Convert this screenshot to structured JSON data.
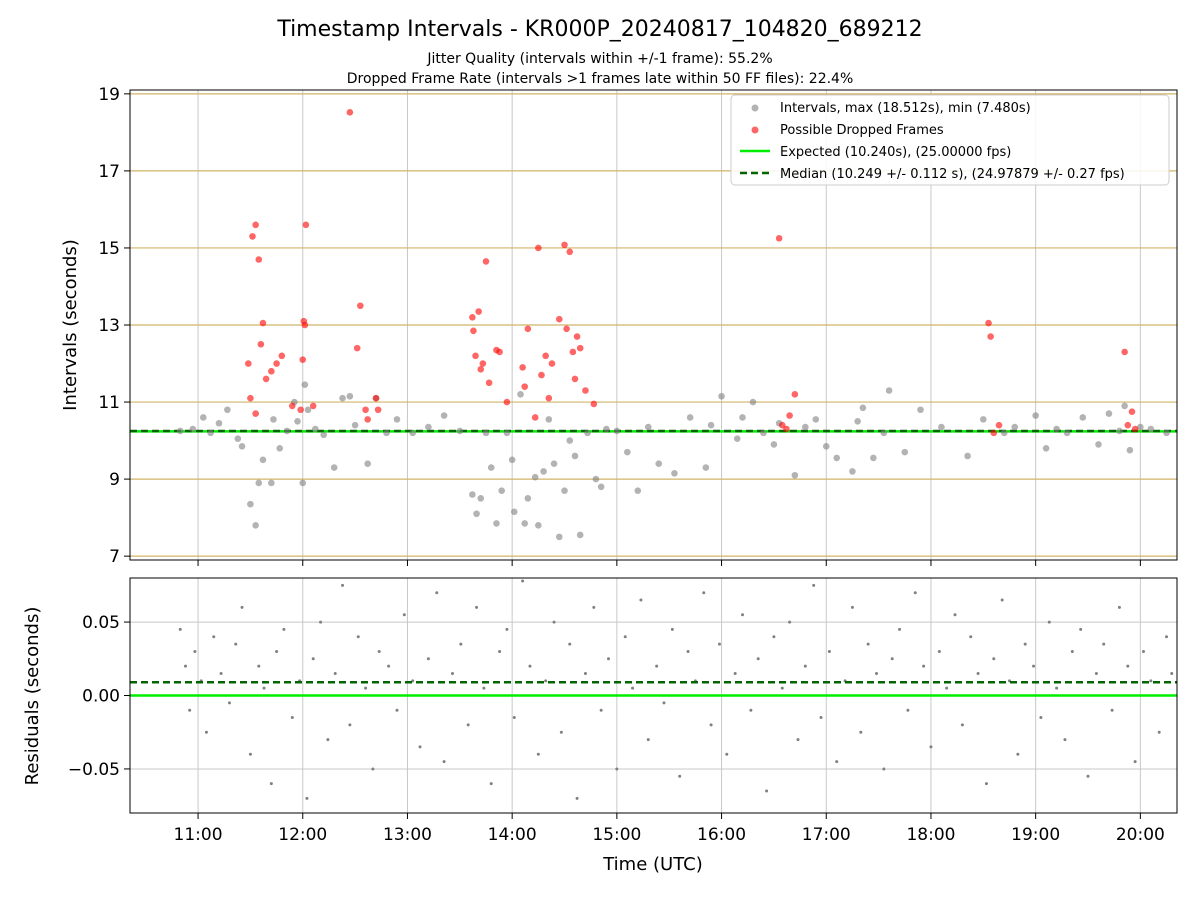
{
  "chart_data": {
    "title": "Timestamp Intervals - KR000P_20240817_104820_689212",
    "subtitle_lines": [
      "Jitter Quality (intervals within +/-1 frame): 55.2%",
      "Dropped Frame Rate (intervals >1 frames late within 50 FF files): 22.4%"
    ],
    "xlabel": "Time (UTC)",
    "x_ticks": [
      "11:00",
      "12:00",
      "13:00",
      "14:00",
      "15:00",
      "16:00",
      "17:00",
      "18:00",
      "19:00",
      "20:00"
    ],
    "x_range_hours": [
      10.35,
      20.35
    ],
    "colors": {
      "intervals": "#808080",
      "dropped": "#ff0000",
      "expected": "#00ee00",
      "median": "#006400",
      "hgrid_top": "#d2b467",
      "grid": "#c8c8c8"
    },
    "panels": [
      {
        "type": "scatter",
        "ylabel": "Intervals (seconds)",
        "ylim": [
          6.9,
          19.1
        ],
        "y_ticks": [
          "7",
          "9",
          "11",
          "13",
          "15",
          "17",
          "19"
        ],
        "legend": {
          "placement": "top-right",
          "entries": [
            "Intervals, max (18.512s), min (7.480s)",
            "Possible Dropped Frames",
            "Expected (10.240s), (25.00000 fps)",
            "Median (10.249 +/- 0.112 s), (24.97879 +/- 0.27 fps)"
          ]
        },
        "expected": 10.24,
        "median": 10.249,
        "series": [
          {
            "name": "Intervals, max (18.512s), min (7.480s)",
            "x": [
              10.83,
              10.95,
              11.05,
              11.12,
              11.2,
              11.28,
              11.38,
              11.42,
              11.5,
              11.55,
              11.58,
              11.62,
              11.7,
              11.72,
              11.78,
              11.85,
              11.92,
              11.95,
              12.0,
              12.02,
              12.05,
              12.12,
              12.2,
              12.3,
              12.38,
              12.45,
              12.5,
              12.62,
              12.7,
              12.8,
              12.9,
              13.05,
              13.2,
              13.35,
              13.5,
              13.62,
              13.66,
              13.7,
              13.75,
              13.8,
              13.85,
              13.9,
              13.95,
              14.0,
              14.02,
              14.08,
              14.12,
              14.15,
              14.22,
              14.25,
              14.3,
              14.35,
              14.4,
              14.45,
              14.5,
              14.55,
              14.6,
              14.65,
              14.72,
              14.8,
              14.85,
              14.9,
              15.0,
              15.1,
              15.2,
              15.3,
              15.4,
              15.55,
              15.7,
              15.85,
              15.9,
              16.0,
              16.15,
              16.2,
              16.3,
              16.4,
              16.5,
              16.55,
              16.7,
              16.8,
              16.9,
              17.0,
              17.1,
              17.25,
              17.3,
              17.35,
              17.45,
              17.55,
              17.6,
              17.75,
              17.9,
              18.1,
              18.35,
              18.5,
              18.7,
              18.8,
              19.0,
              19.1,
              19.2,
              19.3,
              19.45,
              19.6,
              19.7,
              19.8,
              19.85,
              19.9,
              20.0,
              20.1,
              20.25
            ],
            "y": [
              10.25,
              10.3,
              10.6,
              10.2,
              10.45,
              10.8,
              10.05,
              9.85,
              8.35,
              7.8,
              8.9,
              9.5,
              8.9,
              10.55,
              9.8,
              10.25,
              11.0,
              10.5,
              8.9,
              11.45,
              10.8,
              10.3,
              10.15,
              9.3,
              11.1,
              11.15,
              10.4,
              9.4,
              11.1,
              10.2,
              10.55,
              10.2,
              10.35,
              10.65,
              10.25,
              8.6,
              8.1,
              8.5,
              10.2,
              9.3,
              7.85,
              8.7,
              10.2,
              9.5,
              8.15,
              11.2,
              7.85,
              8.5,
              9.05,
              7.8,
              9.2,
              10.55,
              9.4,
              7.5,
              8.7,
              10.0,
              9.6,
              7.55,
              10.2,
              9.0,
              8.8,
              10.3,
              10.25,
              9.7,
              8.7,
              10.35,
              9.4,
              9.15,
              10.6,
              9.3,
              10.4,
              11.15,
              10.05,
              10.6,
              11.0,
              10.2,
              9.9,
              10.45,
              9.1,
              10.35,
              10.55,
              9.85,
              9.55,
              9.2,
              10.5,
              10.85,
              9.55,
              10.2,
              11.3,
              9.7,
              10.8,
              10.35,
              9.6,
              10.55,
              10.2,
              10.35,
              10.65,
              9.8,
              10.3,
              10.2,
              10.6,
              9.9,
              10.7,
              10.25,
              10.9,
              9.75,
              10.35,
              10.3,
              10.2
            ]
          },
          {
            "name": "Possible Dropped Frames",
            "x": [
              11.48,
              11.5,
              11.52,
              11.55,
              11.55,
              11.58,
              11.6,
              11.62,
              11.65,
              11.7,
              11.75,
              11.8,
              11.9,
              11.98,
              12.0,
              12.01,
              12.02,
              12.03,
              12.1,
              12.45,
              12.52,
              12.55,
              12.6,
              12.62,
              12.7,
              12.72,
              13.62,
              13.63,
              13.65,
              13.68,
              13.7,
              13.72,
              13.75,
              13.78,
              13.85,
              13.88,
              13.95,
              14.1,
              14.12,
              14.15,
              14.22,
              14.25,
              14.28,
              14.32,
              14.35,
              14.38,
              14.45,
              14.5,
              14.52,
              14.55,
              14.58,
              14.6,
              14.62,
              14.65,
              14.7,
              14.78,
              16.55,
              16.58,
              16.62,
              16.65,
              16.7,
              18.55,
              18.57,
              18.6,
              18.65,
              19.85,
              19.88,
              19.92,
              19.95
            ],
            "y": [
              12.0,
              11.1,
              15.3,
              15.6,
              10.7,
              14.7,
              12.5,
              13.05,
              11.6,
              11.8,
              12.0,
              12.2,
              10.9,
              10.8,
              12.1,
              13.1,
              13.0,
              15.6,
              10.9,
              18.52,
              12.4,
              13.5,
              10.8,
              10.55,
              11.1,
              10.8,
              13.2,
              12.85,
              12.2,
              13.35,
              11.85,
              12.0,
              14.65,
              11.5,
              12.35,
              12.3,
              11.0,
              11.9,
              11.4,
              12.9,
              10.6,
              15.0,
              11.7,
              12.2,
              11.1,
              12.0,
              13.15,
              15.08,
              12.9,
              14.9,
              12.3,
              11.6,
              12.7,
              12.4,
              11.3,
              10.95,
              15.25,
              10.4,
              10.3,
              10.65,
              11.2,
              13.05,
              12.7,
              10.2,
              10.4,
              12.3,
              10.4,
              10.75,
              10.3
            ]
          }
        ]
      },
      {
        "type": "scatter",
        "ylabel": "Residuals (seconds)",
        "ylim": [
          -0.08,
          0.08
        ],
        "y_ticks": [
          "−0.05",
          "0.00",
          "0.05"
        ],
        "expected": 0.0,
        "median": 0.009,
        "series": [
          {
            "name": "Residuals",
            "x": [
              10.83,
              10.88,
              10.92,
              10.97,
              11.03,
              11.08,
              11.15,
              11.22,
              11.3,
              11.36,
              11.42,
              11.5,
              11.58,
              11.63,
              11.7,
              11.75,
              11.82,
              11.9,
              11.97,
              12.04,
              12.1,
              12.17,
              12.24,
              12.31,
              12.38,
              12.45,
              12.53,
              12.6,
              12.67,
              12.73,
              12.82,
              12.9,
              12.97,
              13.05,
              13.12,
              13.2,
              13.28,
              13.35,
              13.43,
              13.51,
              13.58,
              13.66,
              13.73,
              13.8,
              13.88,
              13.95,
              14.02,
              14.1,
              14.17,
              14.25,
              14.32,
              14.4,
              14.47,
              14.55,
              14.62,
              14.7,
              14.78,
              14.85,
              14.92,
              15.0,
              15.08,
              15.15,
              15.23,
              15.3,
              15.38,
              15.45,
              15.53,
              15.6,
              15.68,
              15.75,
              15.83,
              15.9,
              15.98,
              16.05,
              16.13,
              16.2,
              16.28,
              16.35,
              16.43,
              16.5,
              16.58,
              16.65,
              16.73,
              16.8,
              16.88,
              16.95,
              17.03,
              17.1,
              17.18,
              17.25,
              17.33,
              17.4,
              17.48,
              17.55,
              17.63,
              17.7,
              17.78,
              17.85,
              17.93,
              18.0,
              18.08,
              18.15,
              18.23,
              18.3,
              18.38,
              18.45,
              18.53,
              18.6,
              18.68,
              18.75,
              18.83,
              18.9,
              18.98,
              19.05,
              19.13,
              19.2,
              19.28,
              19.35,
              19.43,
              19.5,
              19.58,
              19.65,
              19.73,
              19.8,
              19.88,
              19.95,
              20.03,
              20.1,
              20.18,
              20.25,
              20.3
            ],
            "y": [
              0.045,
              0.02,
              -0.01,
              0.03,
              0.01,
              -0.025,
              0.04,
              0.015,
              -0.005,
              0.035,
              0.06,
              -0.04,
              0.02,
              0.005,
              -0.06,
              0.03,
              0.045,
              -0.015,
              0.01,
              -0.07,
              0.025,
              0.05,
              -0.03,
              0.015,
              0.075,
              -0.02,
              0.04,
              0.005,
              -0.05,
              0.03,
              0.02,
              -0.01,
              0.055,
              0.01,
              -0.035,
              0.025,
              0.07,
              -0.045,
              0.015,
              0.035,
              -0.02,
              0.06,
              0.005,
              -0.06,
              0.03,
              0.045,
              -0.015,
              0.078,
              0.02,
              -0.04,
              0.01,
              0.05,
              -0.025,
              0.035,
              -0.07,
              0.015,
              0.06,
              -0.01,
              0.025,
              -0.05,
              0.04,
              0.005,
              0.065,
              -0.03,
              0.02,
              -0.005,
              0.045,
              -0.055,
              0.03,
              0.01,
              0.07,
              -0.02,
              0.035,
              -0.04,
              0.015,
              0.055,
              -0.01,
              0.025,
              -0.065,
              0.04,
              0.005,
              0.05,
              -0.03,
              0.02,
              0.075,
              -0.015,
              0.03,
              -0.045,
              0.01,
              0.06,
              -0.025,
              0.035,
              0.015,
              -0.05,
              0.025,
              0.045,
              -0.01,
              0.07,
              0.02,
              -0.035,
              0.03,
              0.005,
              0.055,
              -0.02,
              0.04,
              0.015,
              -0.06,
              0.025,
              0.065,
              0.01,
              -0.04,
              0.035,
              0.02,
              -0.015,
              0.05,
              0.005,
              -0.03,
              0.03,
              0.045,
              -0.055,
              0.015,
              0.035,
              -0.01,
              0.06,
              0.02,
              -0.045,
              0.03,
              0.01,
              -0.025,
              0.04,
              0.015
            ]
          }
        ]
      }
    ]
  }
}
